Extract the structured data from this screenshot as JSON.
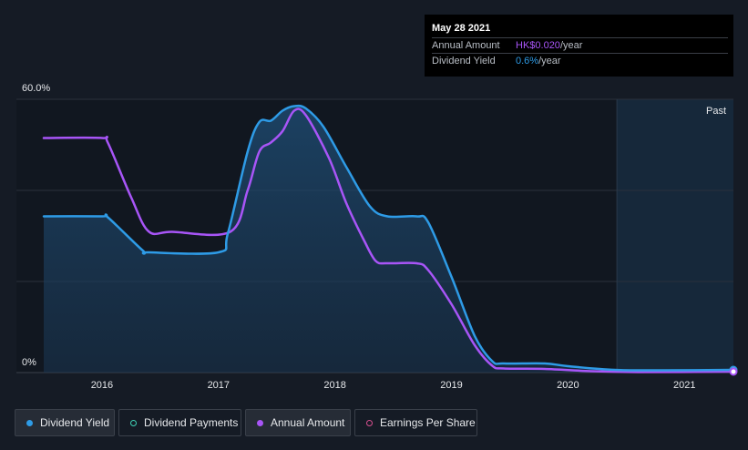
{
  "tooltip": {
    "date": "May 28 2021",
    "annual_amount_label": "Annual Amount",
    "annual_amount_value": "HK$0.020",
    "annual_amount_unit": "/year",
    "dividend_yield_label": "Dividend Yield",
    "dividend_yield_value": "0.6%",
    "dividend_yield_unit": "/year"
  },
  "legend": [
    {
      "label": "Dividend Yield",
      "color": "#2e9be6",
      "filled": true,
      "active": true
    },
    {
      "label": "Dividend Payments",
      "color": "#3fd1b5",
      "filled": false,
      "active": false
    },
    {
      "label": "Annual Amount",
      "color": "#a855f7",
      "filled": true,
      "active": true
    },
    {
      "label": "Earnings Per Share",
      "color": "#d64f8f",
      "filled": false,
      "active": false
    }
  ],
  "chart_data": {
    "type": "line",
    "y_tick_labels": [
      "60.0%",
      "0%"
    ],
    "ylim": [
      0,
      60
    ],
    "xlim": [
      2015.5,
      2021.42
    ],
    "x_tick_labels": [
      "2016",
      "2017",
      "2018",
      "2019",
      "2020",
      "2021"
    ],
    "x_ticks": [
      2016,
      2017,
      2018,
      2019,
      2020,
      2021
    ],
    "past_label": "Past",
    "past_start": 2020.42,
    "grid": true,
    "series": [
      {
        "name": "Dividend Yield",
        "color": "#2e9be6",
        "fill": true,
        "points": [
          [
            2015.5,
            34.3
          ],
          [
            2016.0,
            34.3
          ],
          [
            2016.05,
            34.1
          ],
          [
            2016.35,
            26.8
          ],
          [
            2016.4,
            26.4
          ],
          [
            2017.0,
            26.4
          ],
          [
            2017.08,
            30.5
          ],
          [
            2017.25,
            48.5
          ],
          [
            2017.35,
            55.0
          ],
          [
            2017.45,
            55.3
          ],
          [
            2017.55,
            57.5
          ],
          [
            2017.65,
            58.5
          ],
          [
            2017.75,
            58.0
          ],
          [
            2017.9,
            54.0
          ],
          [
            2018.1,
            45.0
          ],
          [
            2018.3,
            36.5
          ],
          [
            2018.45,
            34.3
          ],
          [
            2018.7,
            34.3
          ],
          [
            2018.8,
            33.0
          ],
          [
            2019.0,
            21.0
          ],
          [
            2019.2,
            8.0
          ],
          [
            2019.35,
            2.5
          ],
          [
            2019.45,
            2.0
          ],
          [
            2019.8,
            2.0
          ],
          [
            2020.0,
            1.4
          ],
          [
            2020.4,
            0.6
          ],
          [
            2020.8,
            0.5
          ],
          [
            2021.42,
            0.6
          ]
        ]
      },
      {
        "name": "Annual Amount",
        "color": "#a855f7",
        "fill": false,
        "points": [
          [
            2015.5,
            51.5
          ],
          [
            2016.0,
            51.5
          ],
          [
            2016.05,
            50.5
          ],
          [
            2016.25,
            38.5
          ],
          [
            2016.4,
            31.0
          ],
          [
            2016.6,
            30.9
          ],
          [
            2017.1,
            30.9
          ],
          [
            2017.25,
            40.0
          ],
          [
            2017.35,
            48.5
          ],
          [
            2017.45,
            50.5
          ],
          [
            2017.55,
            53.0
          ],
          [
            2017.65,
            57.5
          ],
          [
            2017.75,
            56.5
          ],
          [
            2017.95,
            47.0
          ],
          [
            2018.1,
            37.0
          ],
          [
            2018.25,
            29.0
          ],
          [
            2018.35,
            24.5
          ],
          [
            2018.45,
            24.0
          ],
          [
            2018.7,
            24.0
          ],
          [
            2018.8,
            22.5
          ],
          [
            2019.0,
            15.0
          ],
          [
            2019.2,
            6.0
          ],
          [
            2019.35,
            1.5
          ],
          [
            2019.45,
            0.9
          ],
          [
            2019.8,
            0.8
          ],
          [
            2020.2,
            0.3
          ],
          [
            2020.6,
            0.1
          ],
          [
            2021.42,
            0.2
          ]
        ]
      }
    ]
  }
}
